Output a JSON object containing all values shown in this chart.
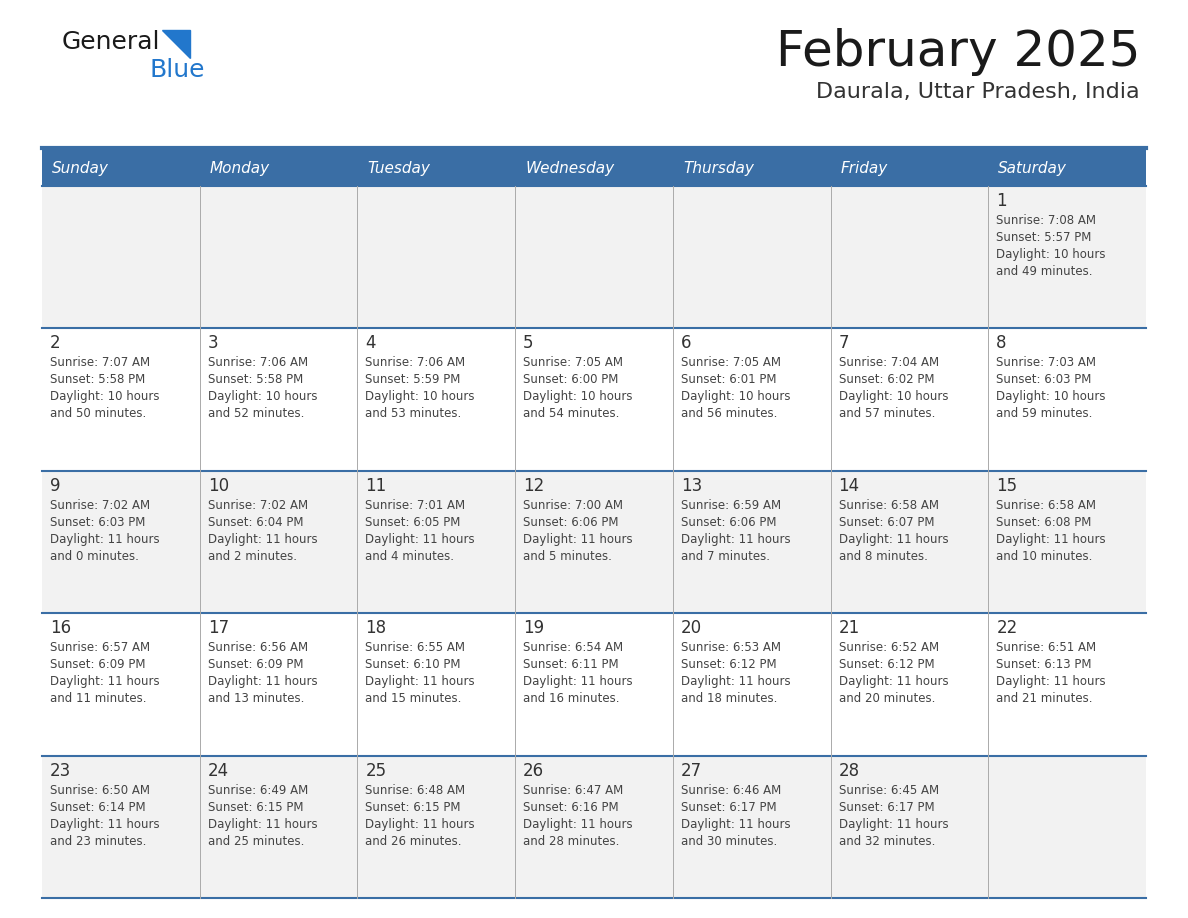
{
  "title": "February 2025",
  "subtitle": "Daurala, Uttar Pradesh, India",
  "header_bg": "#3a6ea5",
  "header_text_color": "#ffffff",
  "cell_bg_odd": "#f2f2f2",
  "cell_bg_even": "#ffffff",
  "day_headers": [
    "Sunday",
    "Monday",
    "Tuesday",
    "Wednesday",
    "Thursday",
    "Friday",
    "Saturday"
  ],
  "title_color": "#1a1a1a",
  "subtitle_color": "#333333",
  "line_color": "#3a6ea5",
  "text_color": "#333333",
  "day_num_color": "#333333",
  "calendar_data": [
    [
      null,
      null,
      null,
      null,
      null,
      null,
      {
        "day": "1",
        "sunrise": "7:08 AM",
        "sunset": "5:57 PM",
        "daylight_h": "10 hours",
        "daylight_m": "and 49 minutes."
      }
    ],
    [
      {
        "day": "2",
        "sunrise": "7:07 AM",
        "sunset": "5:58 PM",
        "daylight_h": "10 hours",
        "daylight_m": "and 50 minutes."
      },
      {
        "day": "3",
        "sunrise": "7:06 AM",
        "sunset": "5:58 PM",
        "daylight_h": "10 hours",
        "daylight_m": "and 52 minutes."
      },
      {
        "day": "4",
        "sunrise": "7:06 AM",
        "sunset": "5:59 PM",
        "daylight_h": "10 hours",
        "daylight_m": "and 53 minutes."
      },
      {
        "day": "5",
        "sunrise": "7:05 AM",
        "sunset": "6:00 PM",
        "daylight_h": "10 hours",
        "daylight_m": "and 54 minutes."
      },
      {
        "day": "6",
        "sunrise": "7:05 AM",
        "sunset": "6:01 PM",
        "daylight_h": "10 hours",
        "daylight_m": "and 56 minutes."
      },
      {
        "day": "7",
        "sunrise": "7:04 AM",
        "sunset": "6:02 PM",
        "daylight_h": "10 hours",
        "daylight_m": "and 57 minutes."
      },
      {
        "day": "8",
        "sunrise": "7:03 AM",
        "sunset": "6:03 PM",
        "daylight_h": "10 hours",
        "daylight_m": "and 59 minutes."
      }
    ],
    [
      {
        "day": "9",
        "sunrise": "7:02 AM",
        "sunset": "6:03 PM",
        "daylight_h": "11 hours",
        "daylight_m": "and 0 minutes."
      },
      {
        "day": "10",
        "sunrise": "7:02 AM",
        "sunset": "6:04 PM",
        "daylight_h": "11 hours",
        "daylight_m": "and 2 minutes."
      },
      {
        "day": "11",
        "sunrise": "7:01 AM",
        "sunset": "6:05 PM",
        "daylight_h": "11 hours",
        "daylight_m": "and 4 minutes."
      },
      {
        "day": "12",
        "sunrise": "7:00 AM",
        "sunset": "6:06 PM",
        "daylight_h": "11 hours",
        "daylight_m": "and 5 minutes."
      },
      {
        "day": "13",
        "sunrise": "6:59 AM",
        "sunset": "6:06 PM",
        "daylight_h": "11 hours",
        "daylight_m": "and 7 minutes."
      },
      {
        "day": "14",
        "sunrise": "6:58 AM",
        "sunset": "6:07 PM",
        "daylight_h": "11 hours",
        "daylight_m": "and 8 minutes."
      },
      {
        "day": "15",
        "sunrise": "6:58 AM",
        "sunset": "6:08 PM",
        "daylight_h": "11 hours",
        "daylight_m": "and 10 minutes."
      }
    ],
    [
      {
        "day": "16",
        "sunrise": "6:57 AM",
        "sunset": "6:09 PM",
        "daylight_h": "11 hours",
        "daylight_m": "and 11 minutes."
      },
      {
        "day": "17",
        "sunrise": "6:56 AM",
        "sunset": "6:09 PM",
        "daylight_h": "11 hours",
        "daylight_m": "and 13 minutes."
      },
      {
        "day": "18",
        "sunrise": "6:55 AM",
        "sunset": "6:10 PM",
        "daylight_h": "11 hours",
        "daylight_m": "and 15 minutes."
      },
      {
        "day": "19",
        "sunrise": "6:54 AM",
        "sunset": "6:11 PM",
        "daylight_h": "11 hours",
        "daylight_m": "and 16 minutes."
      },
      {
        "day": "20",
        "sunrise": "6:53 AM",
        "sunset": "6:12 PM",
        "daylight_h": "11 hours",
        "daylight_m": "and 18 minutes."
      },
      {
        "day": "21",
        "sunrise": "6:52 AM",
        "sunset": "6:12 PM",
        "daylight_h": "11 hours",
        "daylight_m": "and 20 minutes."
      },
      {
        "day": "22",
        "sunrise": "6:51 AM",
        "sunset": "6:13 PM",
        "daylight_h": "11 hours",
        "daylight_m": "and 21 minutes."
      }
    ],
    [
      {
        "day": "23",
        "sunrise": "6:50 AM",
        "sunset": "6:14 PM",
        "daylight_h": "11 hours",
        "daylight_m": "and 23 minutes."
      },
      {
        "day": "24",
        "sunrise": "6:49 AM",
        "sunset": "6:15 PM",
        "daylight_h": "11 hours",
        "daylight_m": "and 25 minutes."
      },
      {
        "day": "25",
        "sunrise": "6:48 AM",
        "sunset": "6:15 PM",
        "daylight_h": "11 hours",
        "daylight_m": "and 26 minutes."
      },
      {
        "day": "26",
        "sunrise": "6:47 AM",
        "sunset": "6:16 PM",
        "daylight_h": "11 hours",
        "daylight_m": "and 28 minutes."
      },
      {
        "day": "27",
        "sunrise": "6:46 AM",
        "sunset": "6:17 PM",
        "daylight_h": "11 hours",
        "daylight_m": "and 30 minutes."
      },
      {
        "day": "28",
        "sunrise": "6:45 AM",
        "sunset": "6:17 PM",
        "daylight_h": "11 hours",
        "daylight_m": "and 32 minutes."
      },
      null
    ]
  ]
}
